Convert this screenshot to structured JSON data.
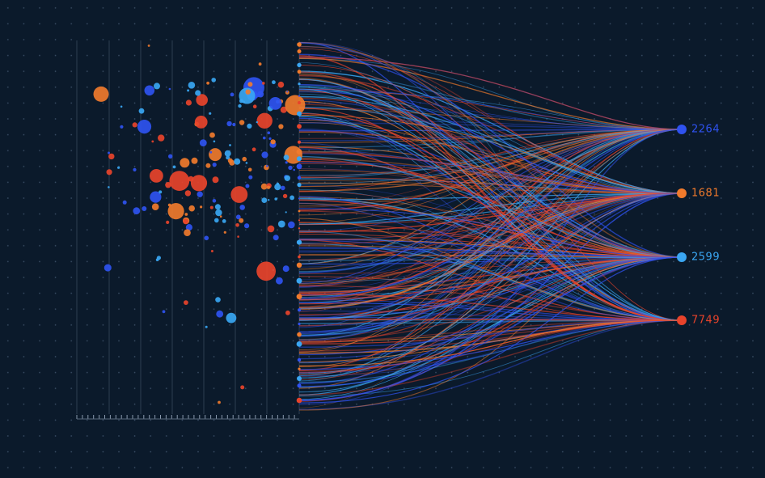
{
  "nodes": [
    {
      "label": "2264",
      "color": "#2f52f0"
    },
    {
      "label": "1681",
      "color": "#f07a2c"
    },
    {
      "label": "2599",
      "color": "#3aa6f2"
    },
    {
      "label": "7749",
      "color": "#e8432b"
    }
  ]
}
